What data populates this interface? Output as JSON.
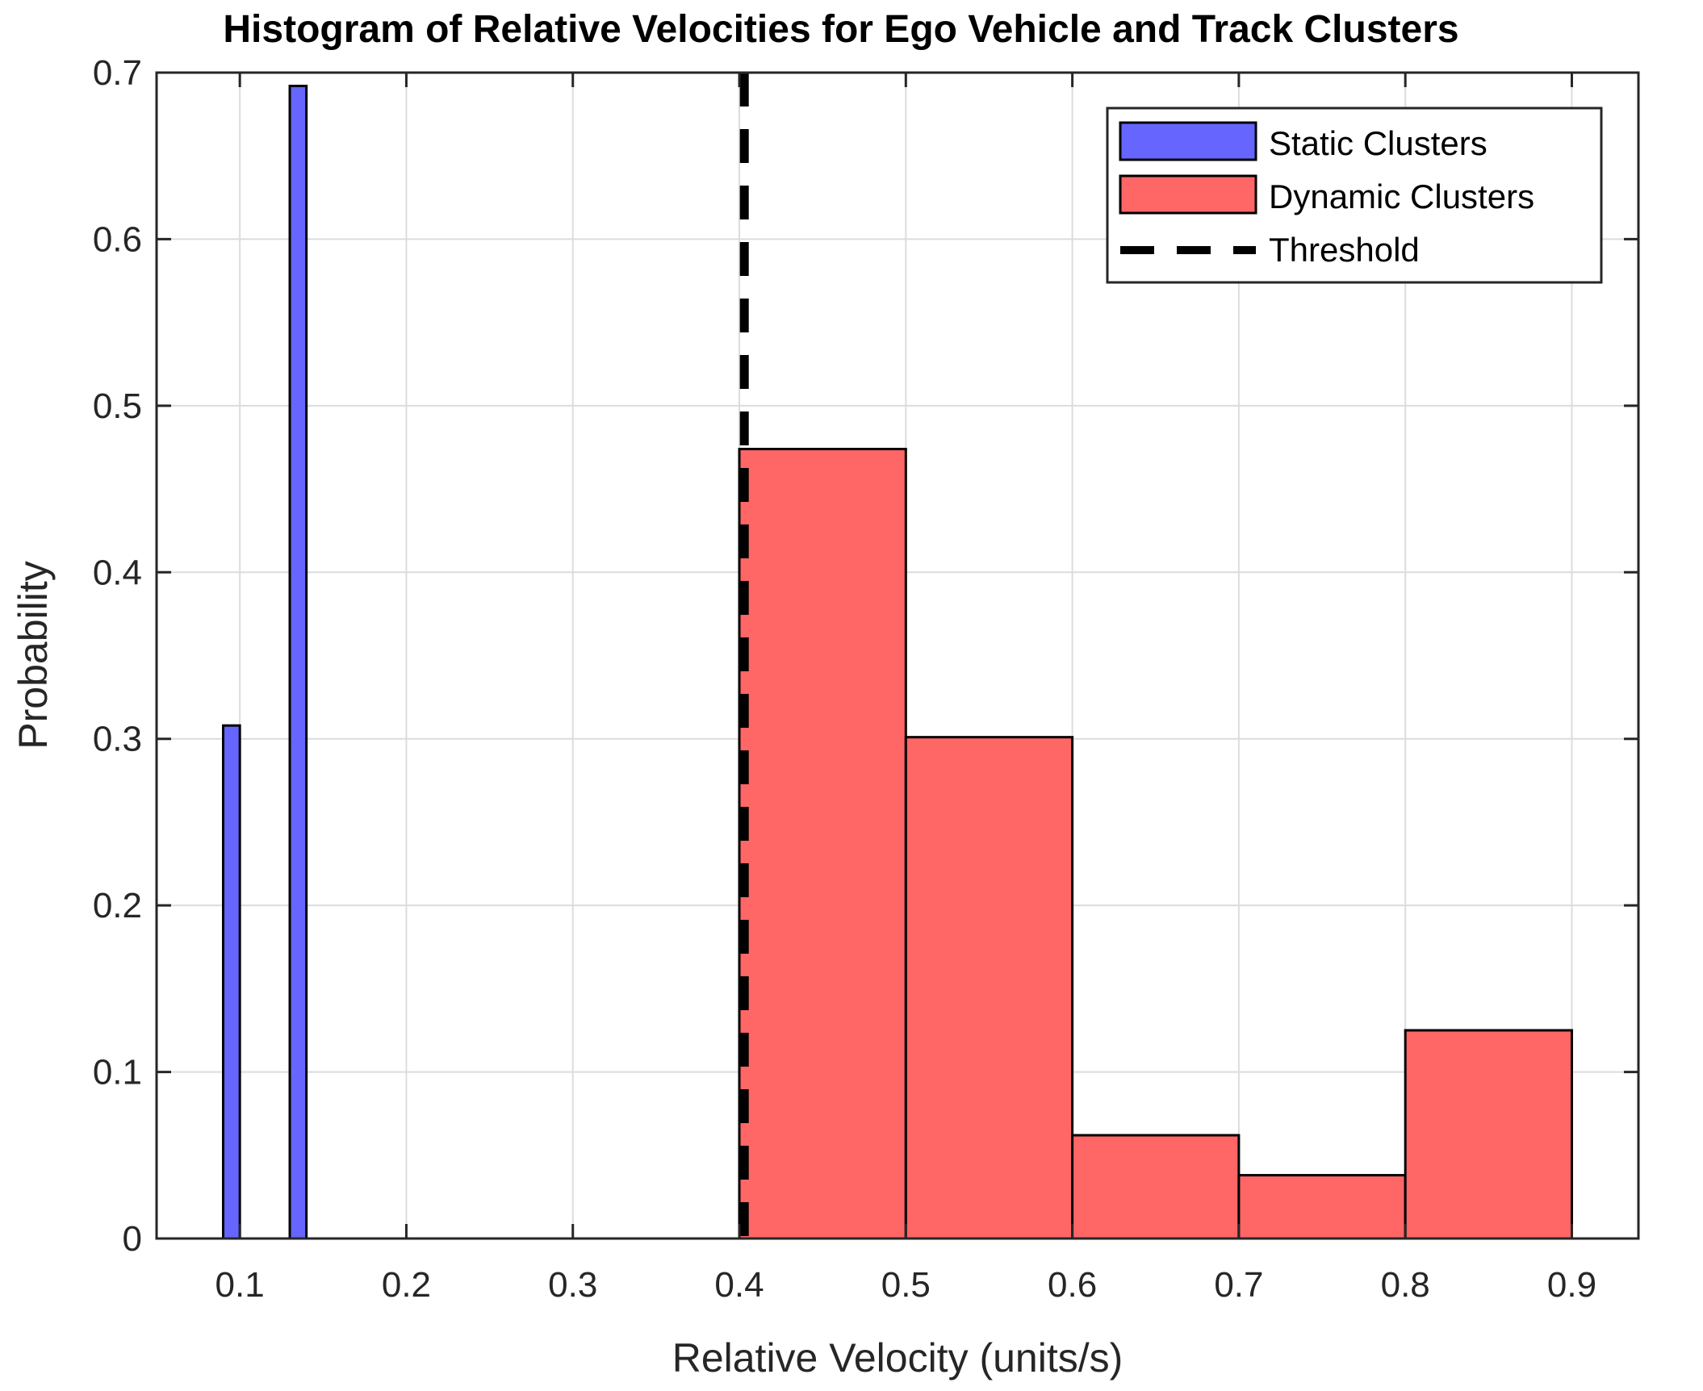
{
  "chart_data": {
    "type": "bar",
    "title": "Histogram of Relative Velocities for Ego Vehicle and Track Clusters",
    "xlabel": "Relative Velocity (units/s)",
    "ylabel": "Probability",
    "xlim": [
      0.05,
      0.94
    ],
    "ylim": [
      0,
      0.7
    ],
    "xticks": [
      0.1,
      0.2,
      0.3,
      0.4,
      0.5,
      0.6,
      0.7,
      0.8,
      0.9
    ],
    "xtick_labels": [
      "0.1",
      "0.2",
      "0.3",
      "0.4",
      "0.5",
      "0.6",
      "0.7",
      "0.8",
      "0.9"
    ],
    "yticks": [
      0,
      0.1,
      0.2,
      0.3,
      0.4,
      0.5,
      0.6,
      0.7
    ],
    "ytick_labels": [
      "0",
      "0.1",
      "0.2",
      "0.3",
      "0.4",
      "0.5",
      "0.6",
      "0.7"
    ],
    "grid": true,
    "legend_position": "top-right",
    "series": [
      {
        "name": "Static Clusters",
        "color": "#6666ff",
        "bins": [
          {
            "start": 0.09,
            "end": 0.1,
            "value": 0.308
          },
          {
            "start": 0.13,
            "end": 0.14,
            "value": 0.692
          }
        ]
      },
      {
        "name": "Dynamic Clusters",
        "color": "#ff6666",
        "bins": [
          {
            "start": 0.4,
            "end": 0.5,
            "value": 0.474
          },
          {
            "start": 0.5,
            "end": 0.6,
            "value": 0.301
          },
          {
            "start": 0.6,
            "end": 0.7,
            "value": 0.062
          },
          {
            "start": 0.7,
            "end": 0.8,
            "value": 0.038
          },
          {
            "start": 0.8,
            "end": 0.9,
            "value": 0.125
          }
        ]
      }
    ],
    "threshold": {
      "name": "Threshold",
      "value": 0.403,
      "color": "#000000"
    },
    "legend": [
      "Static Clusters",
      "Dynamic Clusters",
      "Threshold"
    ]
  }
}
